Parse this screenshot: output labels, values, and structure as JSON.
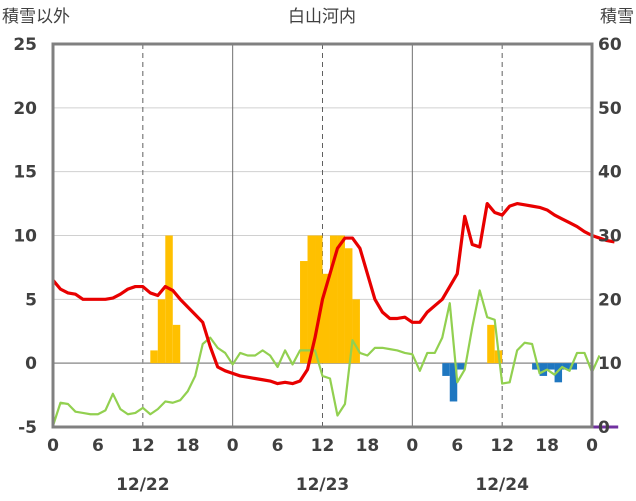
{
  "chart_data": {
    "type": "bar+line",
    "title": "白山河内",
    "left_axis_label": "積雪以外",
    "right_axis_label": "積雪",
    "left_ylim": [
      -5,
      25
    ],
    "right_ylim": [
      0,
      60
    ],
    "left_ticks": [
      "25",
      "20",
      "15",
      "10",
      "5",
      "0",
      "-5"
    ],
    "right_ticks": [
      "60",
      "50",
      "40",
      "30",
      "20",
      "10",
      "0"
    ],
    "x_hour_labels": [
      "0",
      "6",
      "12",
      "18",
      "0",
      "6",
      "12",
      "18",
      "0",
      "6",
      "12",
      "18",
      "0"
    ],
    "x_date_labels": [
      "12/22",
      "12/23",
      "12/24"
    ],
    "xlim_hours": [
      0,
      72
    ],
    "grid": "vertical dashed every 12h, solid at day boundaries; horizontal solid gridlines",
    "colors": {
      "bar_positive": "#FFC000",
      "bar_negative": "#1F77C0",
      "line_red": "#E80000",
      "line_green": "#92D050",
      "baseline_purple": "#7030A0",
      "frame": "#808080"
    },
    "bars": [
      {
        "x": 13.5,
        "v": 1.0
      },
      {
        "x": 14.5,
        "v": 5.0
      },
      {
        "x": 15.5,
        "v": 10.0
      },
      {
        "x": 16.5,
        "v": 3.0
      },
      {
        "x": 33.5,
        "v": 8.0
      },
      {
        "x": 34.5,
        "v": 10.0
      },
      {
        "x": 35.5,
        "v": 10.0
      },
      {
        "x": 36.5,
        "v": 7.0
      },
      {
        "x": 37.5,
        "v": 10.0
      },
      {
        "x": 38.5,
        "v": 10.0
      },
      {
        "x": 39.5,
        "v": 9.0
      },
      {
        "x": 40.5,
        "v": 5.0
      },
      {
        "x": 52.5,
        "v": -1.0
      },
      {
        "x": 53.5,
        "v": -3.0
      },
      {
        "x": 54.5,
        "v": -0.5
      },
      {
        "x": 58.5,
        "v": 3.0
      },
      {
        "x": 59.5,
        "v": 1.0
      },
      {
        "x": 64.5,
        "v": -0.5
      },
      {
        "x": 65.5,
        "v": -1.0
      },
      {
        "x": 66.5,
        "v": -0.5
      },
      {
        "x": 67.5,
        "v": -1.5
      },
      {
        "x": 68.5,
        "v": -0.5
      },
      {
        "x": 69.5,
        "v": -0.5
      }
    ],
    "series_red_left_units": [
      [
        0,
        6.5
      ],
      [
        1,
        5.8
      ],
      [
        2,
        5.5
      ],
      [
        3,
        5.4
      ],
      [
        4,
        5.0
      ],
      [
        5,
        5.0
      ],
      [
        6,
        5.0
      ],
      [
        7,
        5.0
      ],
      [
        8,
        5.1
      ],
      [
        9,
        5.4
      ],
      [
        10,
        5.8
      ],
      [
        11,
        6.0
      ],
      [
        12,
        6.0
      ],
      [
        13,
        5.5
      ],
      [
        14,
        5.3
      ],
      [
        15,
        6.0
      ],
      [
        16,
        5.7
      ],
      [
        17,
        5.0
      ],
      [
        18,
        4.4
      ],
      [
        19,
        3.8
      ],
      [
        20,
        3.2
      ],
      [
        21,
        1.3
      ],
      [
        22,
        -0.3
      ],
      [
        23,
        -0.6
      ],
      [
        24,
        -0.8
      ],
      [
        25,
        -1.0
      ],
      [
        26,
        -1.1
      ],
      [
        27,
        -1.2
      ],
      [
        28,
        -1.3
      ],
      [
        29,
        -1.4
      ],
      [
        30,
        -1.6
      ],
      [
        31,
        -1.5
      ],
      [
        32,
        -1.6
      ],
      [
        33,
        -1.4
      ],
      [
        34,
        -0.5
      ],
      [
        35,
        2.0
      ],
      [
        36,
        5.0
      ],
      [
        37,
        7.0
      ],
      [
        38,
        9.0
      ],
      [
        39,
        9.8
      ],
      [
        40,
        9.8
      ],
      [
        41,
        9.0
      ],
      [
        42,
        7.0
      ],
      [
        43,
        5.0
      ],
      [
        44,
        4.0
      ],
      [
        45,
        3.5
      ],
      [
        46,
        3.5
      ],
      [
        47,
        3.6
      ],
      [
        48,
        3.2
      ],
      [
        49,
        3.2
      ],
      [
        50,
        4.0
      ],
      [
        51,
        4.5
      ],
      [
        52,
        5.0
      ],
      [
        53,
        6.0
      ],
      [
        54,
        7.0
      ],
      [
        55,
        11.5
      ],
      [
        56,
        9.3
      ],
      [
        57,
        9.1
      ],
      [
        58,
        12.5
      ],
      [
        59,
        11.8
      ],
      [
        60,
        11.6
      ],
      [
        61,
        12.3
      ],
      [
        62,
        12.5
      ],
      [
        63,
        12.4
      ],
      [
        64,
        12.3
      ],
      [
        65,
        12.2
      ],
      [
        66,
        12.0
      ],
      [
        67,
        11.6
      ],
      [
        68,
        11.3
      ],
      [
        69,
        11.0
      ],
      [
        70,
        10.7
      ],
      [
        71,
        10.3
      ],
      [
        72,
        10.0
      ],
      [
        73,
        9.8
      ],
      [
        74,
        9.6
      ],
      [
        75,
        9.5
      ]
    ],
    "series_green_left_units": [
      [
        0,
        -4.9
      ],
      [
        1,
        -3.1
      ],
      [
        2,
        -3.2
      ],
      [
        3,
        -3.8
      ],
      [
        4,
        -3.9
      ],
      [
        5,
        -4.0
      ],
      [
        6,
        -4.0
      ],
      [
        7,
        -3.7
      ],
      [
        8,
        -2.4
      ],
      [
        9,
        -3.6
      ],
      [
        10,
        -4.0
      ],
      [
        11,
        -3.9
      ],
      [
        12,
        -3.5
      ],
      [
        13,
        -4.0
      ],
      [
        14,
        -3.6
      ],
      [
        15,
        -3.0
      ],
      [
        16,
        -3.1
      ],
      [
        17,
        -2.9
      ],
      [
        18,
        -2.2
      ],
      [
        19,
        -1.0
      ],
      [
        20,
        1.5
      ],
      [
        21,
        2.0
      ],
      [
        22,
        1.2
      ],
      [
        23,
        0.8
      ],
      [
        24,
        -0.1
      ],
      [
        25,
        0.8
      ],
      [
        26,
        0.6
      ],
      [
        27,
        0.6
      ],
      [
        28,
        1.0
      ],
      [
        29,
        0.6
      ],
      [
        30,
        -0.3
      ],
      [
        31,
        1.0
      ],
      [
        32,
        -0.1
      ],
      [
        33,
        1.0
      ],
      [
        34,
        1.0
      ],
      [
        35,
        1.0
      ],
      [
        36,
        -1.0
      ],
      [
        37,
        -1.2
      ],
      [
        38,
        -4.1
      ],
      [
        39,
        -3.2
      ],
      [
        40,
        1.8
      ],
      [
        41,
        0.8
      ],
      [
        42,
        0.6
      ],
      [
        43,
        1.2
      ],
      [
        44,
        1.2
      ],
      [
        45,
        1.1
      ],
      [
        46,
        1.0
      ],
      [
        47,
        0.8
      ],
      [
        48,
        0.7
      ],
      [
        49,
        -0.6
      ],
      [
        50,
        0.8
      ],
      [
        51,
        0.8
      ],
      [
        52,
        2.0
      ],
      [
        53,
        4.7
      ],
      [
        54,
        -1.5
      ],
      [
        55,
        -0.5
      ],
      [
        56,
        2.8
      ],
      [
        57,
        5.7
      ],
      [
        58,
        3.6
      ],
      [
        59,
        3.4
      ],
      [
        60,
        -1.6
      ],
      [
        61,
        -1.5
      ],
      [
        62,
        1.0
      ],
      [
        63,
        1.6
      ],
      [
        64,
        1.5
      ],
      [
        65,
        -0.8
      ],
      [
        66,
        -0.5
      ],
      [
        67,
        -0.9
      ],
      [
        68,
        -0.3
      ],
      [
        69,
        -0.6
      ],
      [
        70,
        0.8
      ],
      [
        71,
        0.8
      ],
      [
        72,
        -0.7
      ],
      [
        73,
        0.6
      ]
    ],
    "series_purple_right_units": [
      [
        0,
        0
      ],
      [
        75.5,
        0
      ]
    ]
  }
}
